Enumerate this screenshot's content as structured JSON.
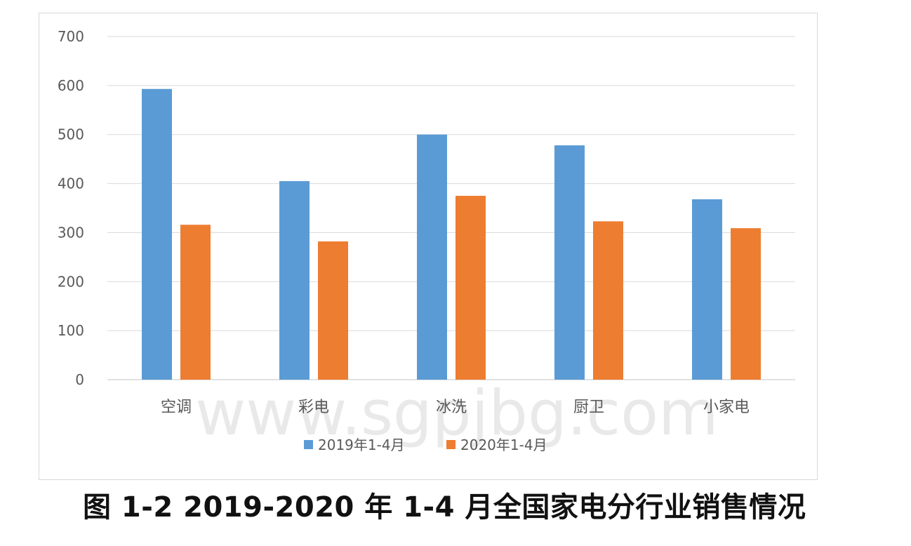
{
  "caption": "图 1-2 2019-2020 年 1-4 月全国家电分行业销售情况",
  "watermark": "www.sgpjbg.com",
  "colors": {
    "series_2019": "#5b9bd5",
    "series_2020": "#ed7d31",
    "grid": "#d9d9d9"
  },
  "chart_data": {
    "type": "bar",
    "categories": [
      "空调",
      "彩电",
      "冰洗",
      "厨卫",
      "小家电"
    ],
    "series": [
      {
        "name": "2019年1-4月",
        "values": [
          593,
          405,
          500,
          478,
          368
        ]
      },
      {
        "name": "2020年1-4月",
        "values": [
          316,
          282,
          375,
          323,
          309
        ]
      }
    ],
    "yticks": [
      "0",
      "100",
      "200",
      "300",
      "400",
      "500",
      "600",
      "700"
    ],
    "ylim": [
      0,
      700
    ],
    "grid": true,
    "legend_position": "bottom"
  }
}
